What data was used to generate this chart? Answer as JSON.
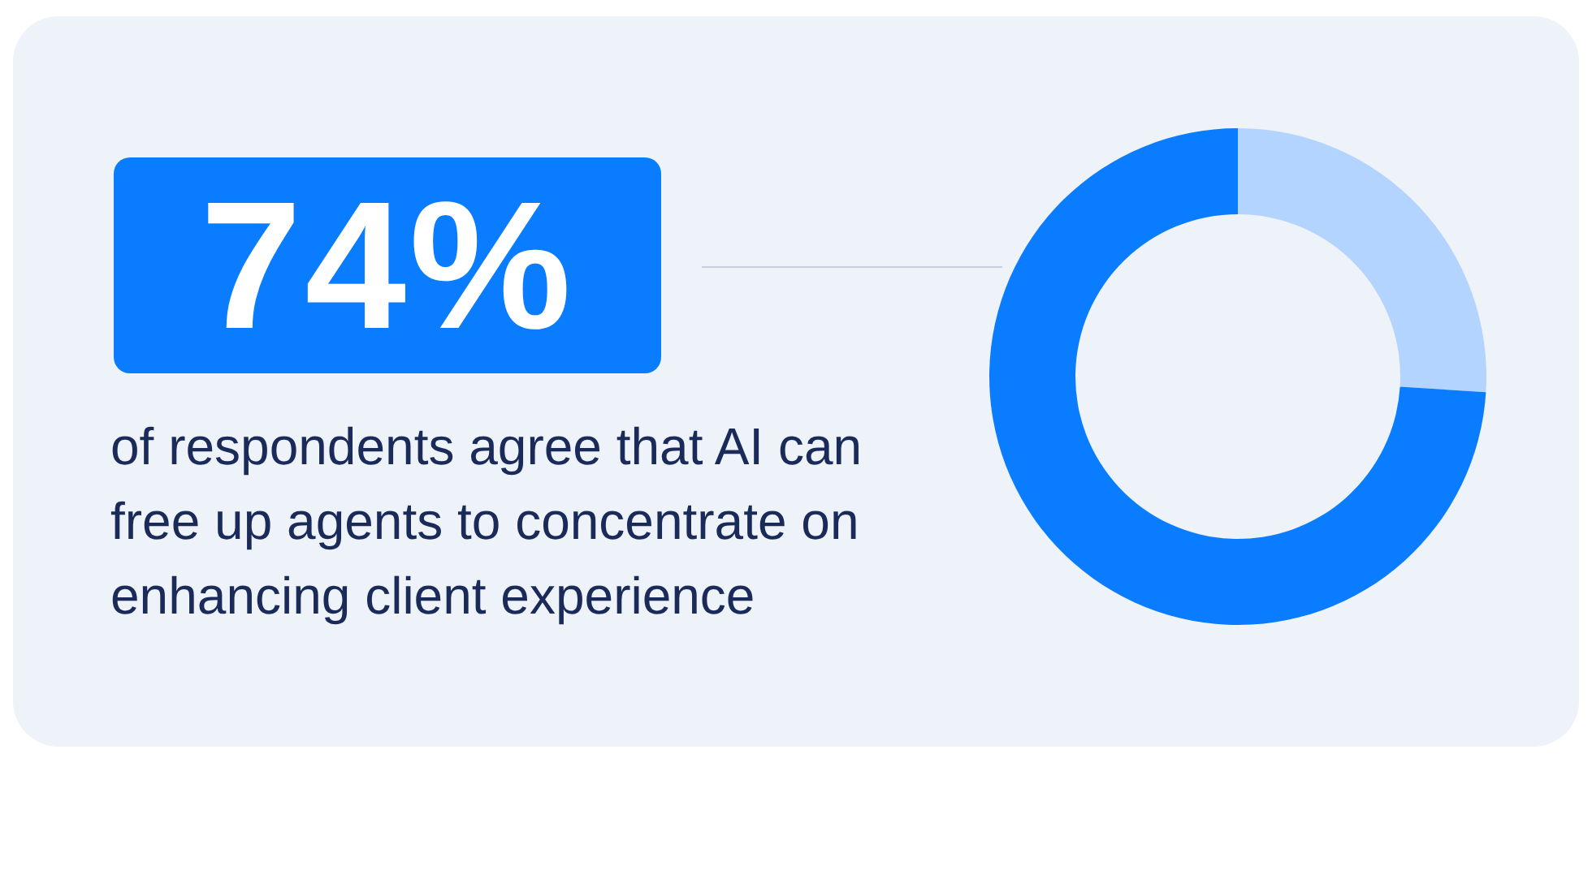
{
  "chart_data": {
    "type": "donut",
    "categories": [
      null,
      null
    ],
    "values": [
      26,
      74
    ],
    "colors": [
      "#b3d4ff",
      "#0a7cff"
    ],
    "value_labels": [
      null,
      "74%"
    ],
    "annotations": [
      "of respondents agree that AI can free up agents to concentrate on enhancing client experience"
    ]
  }
}
